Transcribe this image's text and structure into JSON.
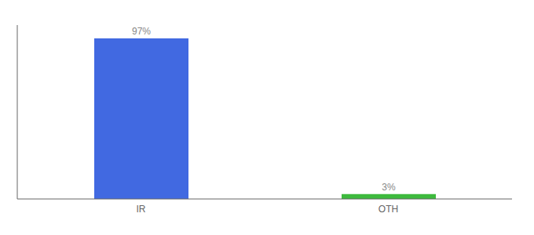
{
  "chart_data": {
    "type": "bar",
    "categories": [
      "IR",
      "OTH"
    ],
    "values": [
      97,
      3
    ],
    "value_labels": [
      "97%",
      "3%"
    ],
    "data_labels": true,
    "colors": [
      "#4169e1",
      "#3dba3d"
    ],
    "ylim": [
      0,
      105
    ],
    "tick_labels": "x",
    "grid": false
  }
}
